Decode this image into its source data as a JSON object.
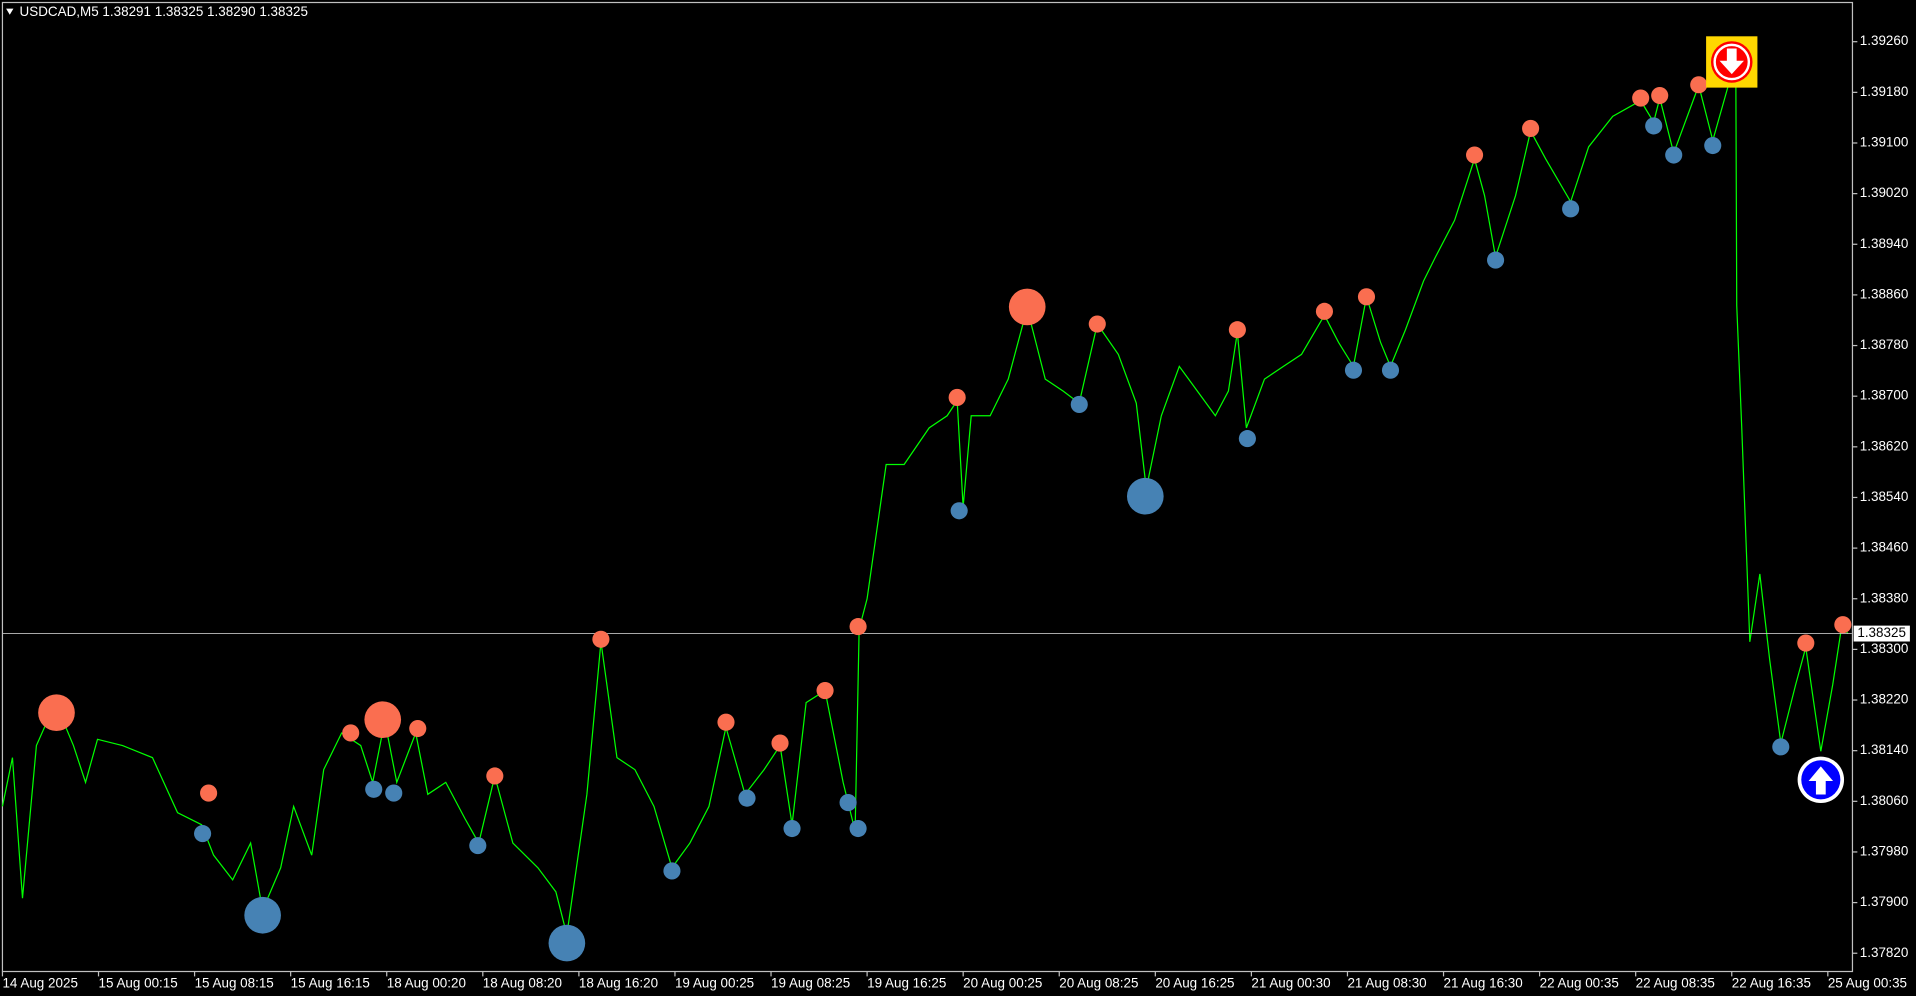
{
  "chart_data": {
    "type": "line",
    "title": "USDCAD,M5  1.38291 1.38325 1.38290 1.38325",
    "xlim": [
      0,
      1848
    ],
    "ylim": [
      1.37795,
      1.3932
    ],
    "xticks": [
      {
        "value": 0,
        "label": "14 Aug 2025"
      },
      {
        "value": 96,
        "label": "15 Aug 00:15"
      },
      {
        "value": 192,
        "label": "15 Aug 08:15"
      },
      {
        "value": 288,
        "label": "15 Aug 16:15"
      },
      {
        "value": 384,
        "label": "18 Aug 00:20"
      },
      {
        "value": 480,
        "label": "18 Aug 08:20"
      },
      {
        "value": 576,
        "label": "18 Aug 16:20"
      },
      {
        "value": 672,
        "label": "19 Aug 00:25"
      },
      {
        "value": 768,
        "label": "19 Aug 08:25"
      },
      {
        "value": 864,
        "label": "19 Aug 16:25"
      },
      {
        "value": 960,
        "label": "20 Aug 00:25"
      },
      {
        "value": 1056,
        "label": "20 Aug 08:25"
      },
      {
        "value": 1152,
        "label": "20 Aug 16:25"
      },
      {
        "value": 1248,
        "label": "21 Aug 00:30"
      },
      {
        "value": 1344,
        "label": "21 Aug 08:30"
      },
      {
        "value": 1440,
        "label": "21 Aug 16:30"
      },
      {
        "value": 1536,
        "label": "22 Aug 00:35"
      },
      {
        "value": 1632,
        "label": "22 Aug 08:35"
      },
      {
        "value": 1728,
        "label": "22 Aug 16:35"
      },
      {
        "value": 1824,
        "label": "25 Aug 00:35"
      }
    ],
    "yticks": [
      {
        "value": 1.3926,
        "label": "1.39260"
      },
      {
        "value": 1.3918,
        "label": "1.39180"
      },
      {
        "value": 1.391,
        "label": "1.39100"
      },
      {
        "value": 1.3902,
        "label": "1.39020"
      },
      {
        "value": 1.3894,
        "label": "1.38940"
      },
      {
        "value": 1.3886,
        "label": "1.38860"
      },
      {
        "value": 1.3878,
        "label": "1.38780"
      },
      {
        "value": 1.387,
        "label": "1.38700"
      },
      {
        "value": 1.3862,
        "label": "1.38620"
      },
      {
        "value": 1.3854,
        "label": "1.38540"
      },
      {
        "value": 1.3846,
        "label": "1.38460"
      },
      {
        "value": 1.3838,
        "label": "1.38380"
      },
      {
        "value": 1.383,
        "label": "1.38300"
      },
      {
        "value": 1.3822,
        "label": "1.38220"
      },
      {
        "value": 1.3814,
        "label": "1.38140"
      },
      {
        "value": 1.3806,
        "label": "1.38060"
      },
      {
        "value": 1.3798,
        "label": "1.37980"
      },
      {
        "value": 1.379,
        "label": "1.37900"
      },
      {
        "value": 1.3782,
        "label": "1.37820"
      }
    ],
    "grid": false,
    "last": {
      "value": 1.38325,
      "label": "1.38325"
    },
    "series": [
      {
        "color": "#00ff00",
        "x": [
          0,
          10,
          20,
          34,
          53,
          71,
          83,
          95,
          120,
          150,
          175,
          199,
          211,
          230,
          248,
          260,
          278,
          291,
          309,
          321,
          339,
          358,
          370,
          382,
          394,
          413,
          425,
          443,
          462,
          476,
          492,
          510,
          535,
          553,
          564,
          584,
          598,
          614,
          632,
          651,
          669,
          687,
          706,
          723,
          742,
          761,
          777,
          789,
          803,
          822,
          840,
          852,
          856,
          864,
          883,
          901,
          926,
          944,
          954,
          960,
          968,
          987,
          1005,
          1024,
          1042,
          1060,
          1076,
          1094,
          1115,
          1133,
          1143,
          1158,
          1176,
          1194,
          1212,
          1225,
          1234,
          1243,
          1261,
          1280,
          1298,
          1321,
          1335,
          1350,
          1363,
          1377,
          1387,
          1402,
          1420,
          1432,
          1451,
          1471,
          1481,
          1492,
          1512,
          1527,
          1542,
          1567,
          1585,
          1609,
          1637,
          1650,
          1656,
          1670,
          1695,
          1709,
          1728,
          1732,
          1733,
          1738,
          1746,
          1756,
          1766,
          1777,
          1792,
          1802,
          1817,
          1829,
          1838,
          1844
        ],
        "values": [
          1.38052,
          1.38129,
          1.37907,
          1.38148,
          1.38216,
          1.38148,
          1.3809,
          1.38158,
          1.38148,
          1.38129,
          1.38042,
          1.38023,
          1.37975,
          1.37936,
          1.37994,
          1.37888,
          1.37955,
          1.38052,
          1.37975,
          1.3811,
          1.38168,
          1.38148,
          1.3809,
          1.38187,
          1.3809,
          1.38168,
          1.38071,
          1.3809,
          1.38033,
          1.37994,
          1.381,
          1.37994,
          1.37955,
          1.37917,
          1.37849,
          1.38071,
          1.38312,
          1.38129,
          1.3811,
          1.38052,
          1.37955,
          1.37994,
          1.38052,
          1.38177,
          1.38071,
          1.3811,
          1.38148,
          1.38023,
          1.38216,
          1.38235,
          1.3809,
          1.38013,
          1.38332,
          1.3838,
          1.38592,
          1.38592,
          1.3865,
          1.38669,
          1.38693,
          1.38525,
          1.38669,
          1.38669,
          1.38727,
          1.38839,
          1.38727,
          1.38708,
          1.38689,
          1.38814,
          1.38766,
          1.38689,
          1.38554,
          1.38669,
          1.38747,
          1.38708,
          1.38669,
          1.38708,
          1.38801,
          1.3865,
          1.38727,
          1.38747,
          1.38766,
          1.38828,
          1.38785,
          1.38747,
          1.38857,
          1.38785,
          1.38747,
          1.38805,
          1.38882,
          1.3892,
          1.38978,
          1.39075,
          1.39017,
          1.3892,
          1.39017,
          1.39119,
          1.39075,
          1.39007,
          1.39094,
          1.39142,
          1.39167,
          1.39133,
          1.39171,
          1.39084,
          1.39191,
          1.39104,
          1.3921,
          1.39239,
          1.38843,
          1.3865,
          1.38312,
          1.38419,
          1.38283,
          1.38152,
          1.38245,
          1.38303,
          1.38139,
          1.38245,
          1.38338,
          1.38325
        ]
      }
    ],
    "markers": [
      {
        "color": "#fa6e50",
        "marker": "small",
        "x": [
          206,
          348,
          415,
          492,
          598,
          723,
          777,
          822,
          855,
          954,
          1094,
          1234,
          1321,
          1363,
          1471,
          1527,
          1637,
          1656,
          1695,
          1802,
          1839
        ],
        "values": [
          1.38073,
          1.38168,
          1.38175,
          1.381,
          1.38316,
          1.38185,
          1.38152,
          1.38235,
          1.38336,
          1.38698,
          1.38814,
          1.38805,
          1.38834,
          1.38857,
          1.39081,
          1.39123,
          1.39171,
          1.39175,
          1.39192,
          1.3831,
          1.38339
        ]
      },
      {
        "color": "#fa6e50",
        "marker": "large",
        "x": [
          54,
          380,
          1024
        ],
        "values": [
          1.382,
          1.38189,
          1.38841
        ]
      },
      {
        "color": "#4682b4",
        "marker": "small",
        "x": [
          200,
          371,
          391,
          475,
          669,
          744,
          789,
          845,
          855,
          956,
          1076,
          1244,
          1350,
          1387,
          1492,
          1567,
          1650,
          1670,
          1709,
          1777
        ],
        "values": [
          1.38009,
          1.38079,
          1.38073,
          1.3799,
          1.3795,
          1.38065,
          1.38017,
          1.38058,
          1.38017,
          1.38519,
          1.38687,
          1.38633,
          1.38741,
          1.38741,
          1.38915,
          1.38996,
          1.39127,
          1.39081,
          1.39096,
          1.38146
        ]
      },
      {
        "color": "#4682b4",
        "marker": "large",
        "x": [
          260,
          564,
          1142
        ],
        "values": [
          1.3788,
          1.37836,
          1.38542
        ]
      },
      {
        "color": "#ff0000",
        "marker": "arrow-down",
        "x": [
          1728
        ],
        "values": [
          1.39228
        ]
      },
      {
        "color": "#0000ff",
        "marker": "arrow-up",
        "x": [
          1817
        ],
        "values": [
          1.38094
        ]
      }
    ]
  }
}
